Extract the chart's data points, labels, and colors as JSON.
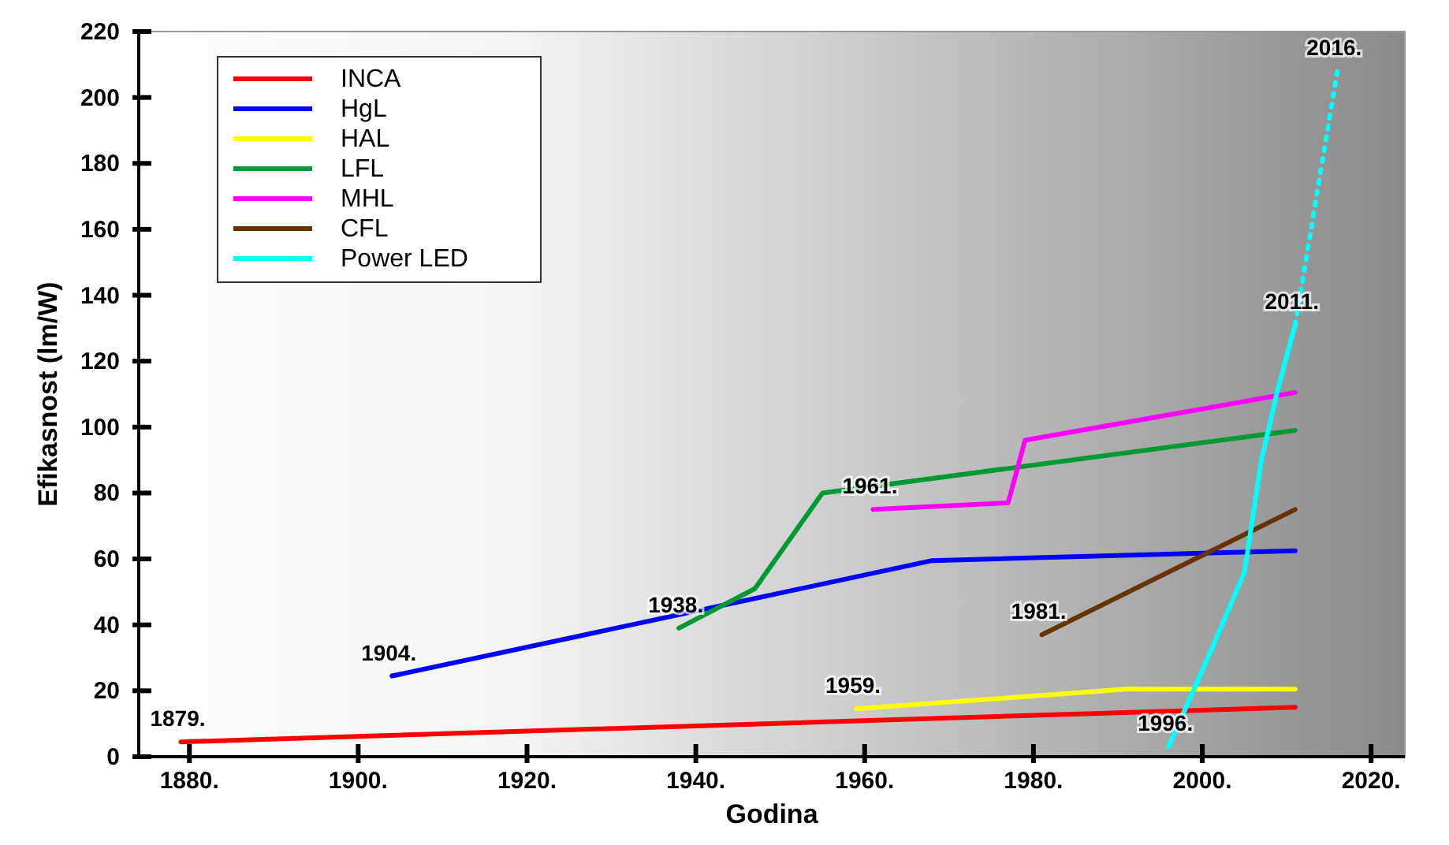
{
  "chart_data": {
    "type": "line",
    "xlabel": "Godina",
    "ylabel": "Efikasnost (lm/W)",
    "xlim": [
      1874,
      2024
    ],
    "ylim": [
      0,
      220
    ],
    "xticks": [
      {
        "value": 1880,
        "label": "1880."
      },
      {
        "value": 1900,
        "label": "1900."
      },
      {
        "value": 1920,
        "label": "1920."
      },
      {
        "value": 1940,
        "label": "1940."
      },
      {
        "value": 1960,
        "label": "1960."
      },
      {
        "value": 1980,
        "label": "1980."
      },
      {
        "value": 2000,
        "label": "2000."
      },
      {
        "value": 2020,
        "label": "2020."
      }
    ],
    "yticks": [
      0,
      20,
      40,
      60,
      80,
      100,
      120,
      140,
      160,
      180,
      200,
      220
    ],
    "legend": "top left",
    "grid": false,
    "line_style": "solid",
    "series": [
      {
        "name": "INCA",
        "color": "#ff0000",
        "x": [
          1879,
          2011
        ],
        "values": [
          4.5,
          15
        ]
      },
      {
        "name": "HgL",
        "color": "#0000ff",
        "x": [
          1904,
          1968,
          2011
        ],
        "values": [
          24.5,
          59.5,
          62.5
        ]
      },
      {
        "name": "HAL",
        "color": "#ffff00",
        "x": [
          1959,
          1991,
          2011
        ],
        "values": [
          14.5,
          20.5,
          20.5
        ]
      },
      {
        "name": "LFL",
        "color": "#009933",
        "x": [
          1938,
          1947,
          1955,
          2011
        ],
        "values": [
          39,
          51,
          80,
          99
        ]
      },
      {
        "name": "MHL",
        "color": "#ff00ff",
        "x": [
          1961,
          1977,
          1979,
          2011
        ],
        "values": [
          75,
          77,
          96,
          110.5
        ]
      },
      {
        "name": "CFL",
        "color": "#663300",
        "x": [
          1981,
          2011
        ],
        "values": [
          37,
          75
        ]
      },
      {
        "name": "Power LED",
        "color": "#00ffff",
        "x": [
          1996,
          2001,
          2005,
          2007,
          2009,
          2011
        ],
        "values": [
          3,
          32,
          56,
          90,
          112,
          131
        ]
      },
      {
        "color": "#00ffff",
        "line_style": "dotted",
        "x": [
          2011,
          2016
        ],
        "values": [
          131,
          208
        ]
      }
    ],
    "annotations": [
      {
        "text": "1879.",
        "x": 1879,
        "y": 4.5
      },
      {
        "text": "1904.",
        "x": 1904,
        "y": 24.5
      },
      {
        "text": "1938.",
        "x": 1938,
        "y": 39
      },
      {
        "text": "1959.",
        "x": 1959,
        "y": 14.5
      },
      {
        "text": "1961.",
        "x": 1961,
        "y": 75
      },
      {
        "text": "1981.",
        "x": 1981,
        "y": 37
      },
      {
        "text": "1996.",
        "x": 1996,
        "y": 3
      },
      {
        "text": "2011.",
        "x": 2011,
        "y": 131
      },
      {
        "text": "2016.",
        "x": 2016,
        "y": 208
      }
    ]
  }
}
